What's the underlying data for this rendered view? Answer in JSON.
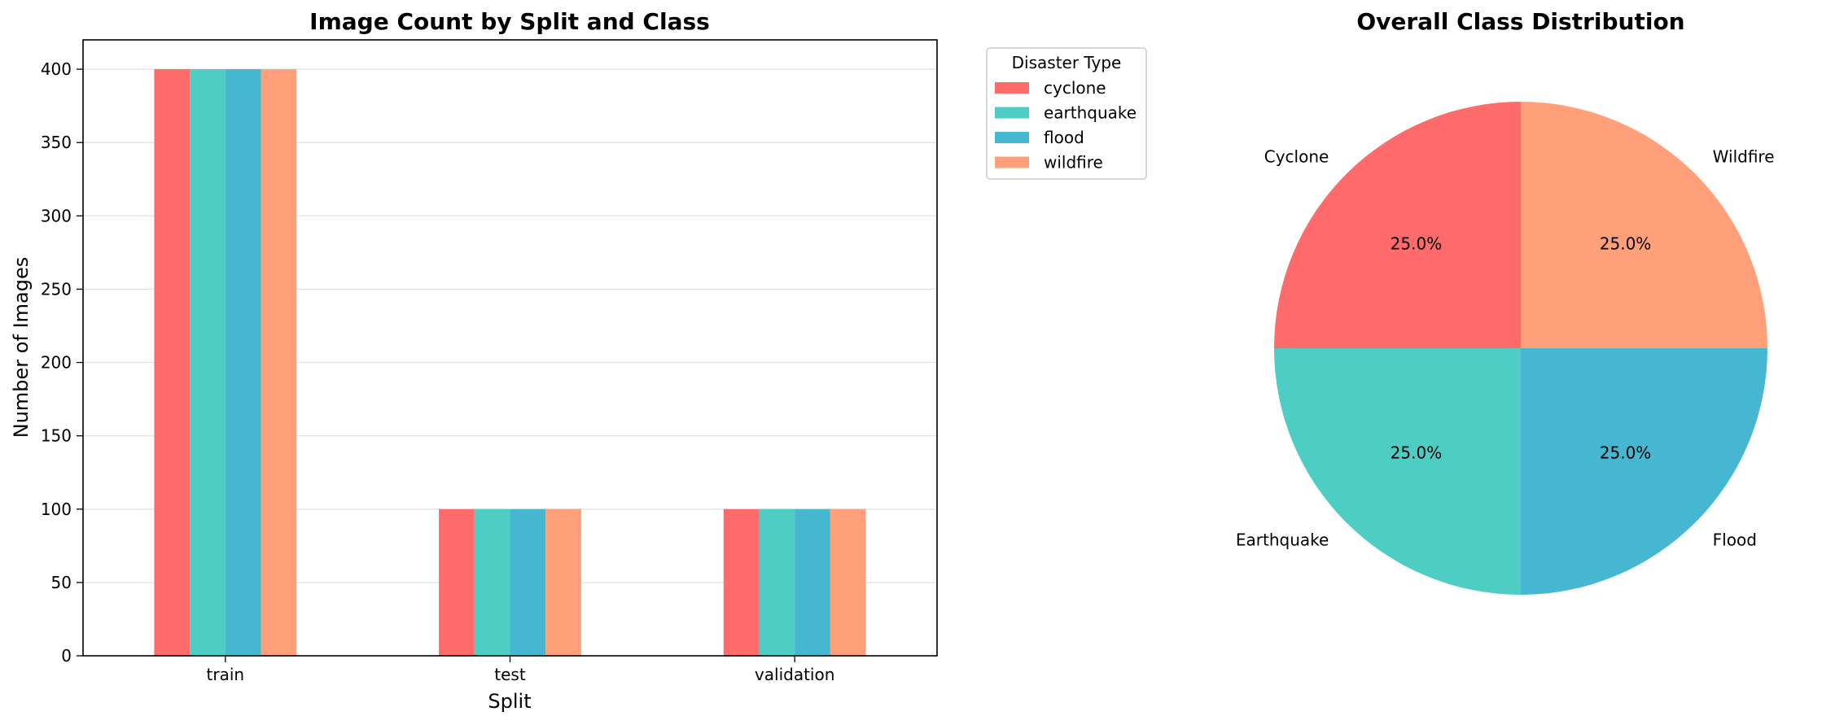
{
  "colors": {
    "cyclone": "#FF6B6B",
    "earthquake": "#4ECDC4",
    "flood": "#45B7D1",
    "wildfire": "#FFA07A"
  },
  "chart_data": [
    {
      "type": "bar",
      "title": "Image Count by Split and Class",
      "xlabel": "Split",
      "ylabel": "Number of Images",
      "categories": [
        "train",
        "test",
        "validation"
      ],
      "ylim": [
        0,
        420
      ],
      "yticks": [
        0,
        50,
        100,
        150,
        200,
        250,
        300,
        350,
        400
      ],
      "grid": "horizontal",
      "legend": {
        "title": "Disaster Type",
        "placement": "outside upper-right"
      },
      "series": [
        {
          "name": "cyclone",
          "values": [
            400,
            100,
            100
          ]
        },
        {
          "name": "earthquake",
          "values": [
            400,
            100,
            100
          ]
        },
        {
          "name": "flood",
          "values": [
            400,
            100,
            100
          ]
        },
        {
          "name": "wildfire",
          "values": [
            400,
            100,
            100
          ]
        }
      ]
    },
    {
      "type": "pie",
      "title": "Overall Class Distribution",
      "slices": [
        {
          "label": "Cyclone",
          "value": 25.0,
          "pct_label": "25.0%",
          "color_key": "cyclone"
        },
        {
          "label": "Earthquake",
          "value": 25.0,
          "pct_label": "25.0%",
          "color_key": "earthquake"
        },
        {
          "label": "Flood",
          "value": 25.0,
          "pct_label": "25.0%",
          "color_key": "flood"
        },
        {
          "label": "Wildfire",
          "value": 25.0,
          "pct_label": "25.0%",
          "color_key": "wildfire"
        }
      ]
    }
  ]
}
